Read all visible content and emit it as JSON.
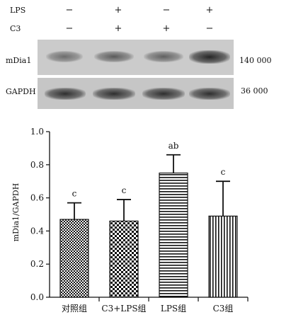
{
  "blot": {
    "rows": [
      {
        "label": "LPS",
        "signs": [
          "−",
          "+",
          "−",
          "+"
        ]
      },
      {
        "label": "C3",
        "signs": [
          "−",
          "+",
          "+",
          "−"
        ]
      }
    ],
    "panels": [
      {
        "protein": "mDia1",
        "size": "140 000",
        "intensity": [
          0.55,
          0.65,
          0.62,
          0.9
        ]
      },
      {
        "protein": "GAPDH",
        "size": "36 000",
        "intensity": [
          0.85,
          0.85,
          0.85,
          0.85
        ]
      }
    ]
  },
  "chart_data": {
    "type": "bar",
    "ylabel": "mDia1/GAPDH",
    "ylim": [
      0.0,
      1.0
    ],
    "yticks": [
      "0.0",
      "0.2",
      "0.4",
      "0.6",
      "0.8",
      "1.0"
    ],
    "categories": [
      "对照组",
      "C3+LPS组",
      "LPS组",
      "C3组"
    ],
    "values": [
      0.47,
      0.46,
      0.75,
      0.49
    ],
    "errors": [
      0.1,
      0.13,
      0.11,
      0.21
    ],
    "annotations": [
      "c",
      "c",
      "ab",
      "c"
    ],
    "patterns": [
      "checker-fine",
      "checker-coarse",
      "horizontal-stripes",
      "vertical-stripes"
    ],
    "grid": false
  }
}
